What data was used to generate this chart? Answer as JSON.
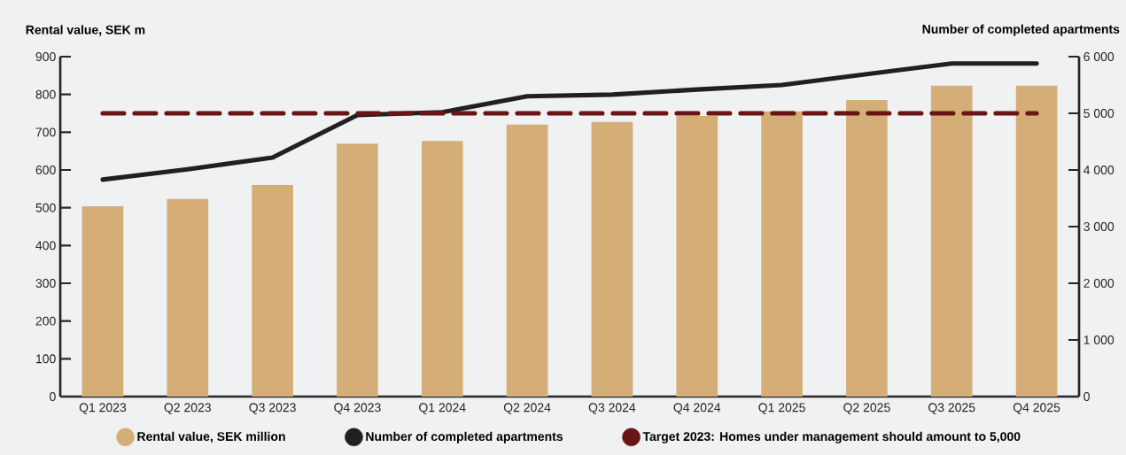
{
  "chart_data": {
    "type": "bar",
    "ylabel": "Rental value, SEK m",
    "y2label": "Number of completed apartments",
    "categories": [
      "Q1 2023",
      "Q2 2023",
      "Q3 2023",
      "Q4 2023",
      "Q1 2024",
      "Q2 2024",
      "Q3 2024",
      "Q4 2024",
      "Q1 2025",
      "Q2 2025",
      "Q3 2025",
      "Q4 2025"
    ],
    "series": [
      {
        "name": "Rental value, SEK million",
        "type": "bar",
        "color": "#d4ae76",
        "values": [
          504,
          523,
          560,
          670,
          677,
          720,
          727,
          743,
          755,
          785,
          823,
          823
        ]
      },
      {
        "name": "Number of completed apartments",
        "type": "line",
        "axis": "y2",
        "color": "#231f20",
        "line_style": "solid",
        "values": [
          3830,
          4010,
          4220,
          4970,
          5020,
          5300,
          5330,
          5420,
          5500,
          5690,
          5880,
          5880
        ]
      }
    ],
    "ylim": [
      0,
      900
    ],
    "yticks": [
      0,
      100,
      200,
      300,
      400,
      500,
      600,
      700,
      800,
      900
    ],
    "y2lim": [
      0,
      6000
    ],
    "y2ticks": [
      0,
      {
        "value": 1000,
        "label": "1 000"
      },
      {
        "value": 2000,
        "label": "2 000"
      },
      {
        "value": 3000,
        "label": "3 000"
      },
      {
        "value": 4000,
        "label": "4 000"
      },
      {
        "value": 5000,
        "label": "5 000"
      },
      {
        "value": 6000,
        "label": "6 000"
      }
    ],
    "ref_lines": [
      {
        "axis": "y2",
        "value": 5000,
        "label": "Target 2023: Homes under management should amount to 5,000",
        "color": "#6b1416",
        "line_style": "dashed"
      }
    ],
    "legend": "bottom"
  }
}
